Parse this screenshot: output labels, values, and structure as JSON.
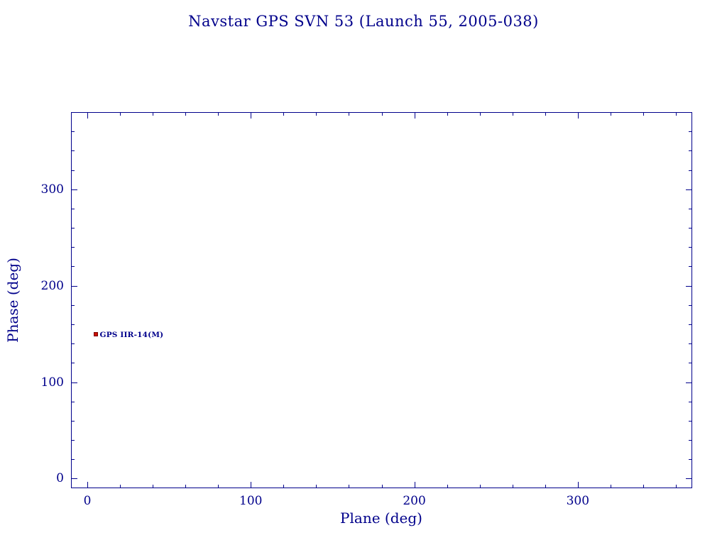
{
  "chart_data": {
    "type": "scatter",
    "title": "Navstar GPS SVN 53 (Launch 55, 2005-038)",
    "xlabel": "Plane (deg)",
    "ylabel": "Phase (deg)",
    "xlim": [
      -10,
      370
    ],
    "ylim": [
      -10,
      380
    ],
    "xticks": [
      0,
      100,
      200,
      300
    ],
    "yticks": [
      0,
      100,
      200,
      300
    ],
    "minor_tick_step": 20,
    "grid": false,
    "legend": "none",
    "points": [
      {
        "x": 5,
        "y": 150,
        "label": "GPS IIR-14(M)",
        "marker": "square",
        "color": "#cc1100",
        "edge_color": "#7a0000"
      }
    ],
    "colors": {
      "axis": "#00008b",
      "text": "#00008b",
      "background": "#ffffff"
    }
  }
}
